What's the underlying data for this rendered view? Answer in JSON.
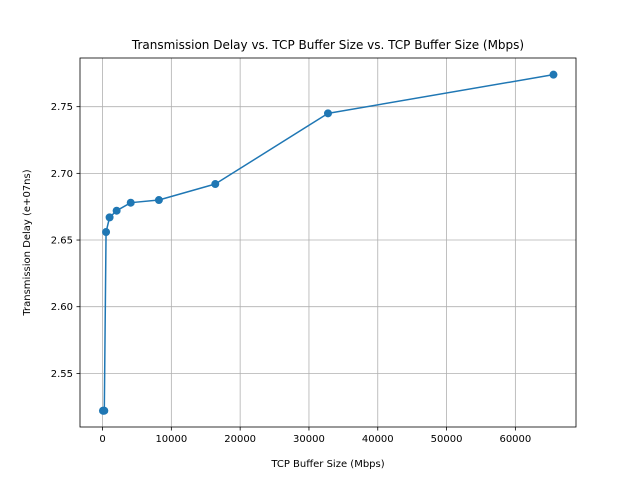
{
  "chart_data": {
    "type": "line",
    "title": "Transmission Delay vs. TCP Buffer Size vs. TCP Buffer Size (Mbps)",
    "xlabel": "TCP Buffer Size (Mbps)",
    "ylabel": "Transmission Delay (e+07ns)",
    "xlim": [
      -3276,
      68812
    ],
    "ylim": [
      2.5098,
      2.7865
    ],
    "xticks": [
      0,
      10000,
      20000,
      30000,
      40000,
      50000,
      60000
    ],
    "yticks": [
      2.55,
      2.6,
      2.65,
      2.7,
      2.75
    ],
    "ytick_labels": [
      "2.55",
      "2.60",
      "2.65",
      "2.70",
      "2.75"
    ],
    "grid": true,
    "series": [
      {
        "color": "#1f77b4",
        "marker": "circle",
        "x": [
          64,
          128,
          256,
          512,
          1024,
          2048,
          4096,
          8192,
          16384,
          32768,
          65536
        ],
        "y": [
          2.522,
          2.522,
          2.522,
          2.656,
          2.667,
          2.672,
          2.678,
          2.68,
          2.692,
          2.745,
          2.774
        ]
      }
    ]
  }
}
